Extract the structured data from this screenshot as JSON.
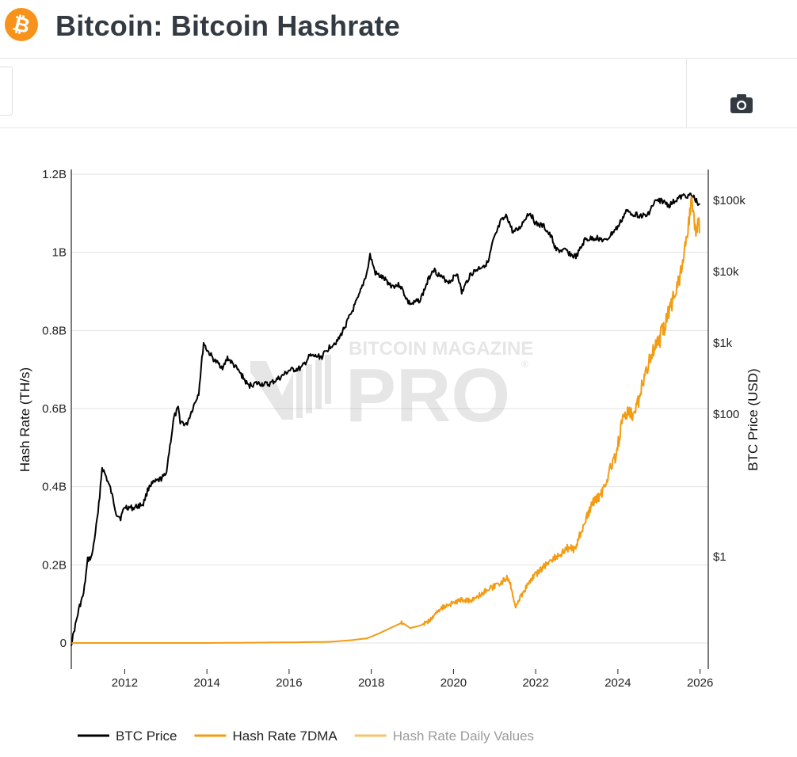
{
  "header": {
    "title": "Bitcoin: Bitcoin Hashrate",
    "logo_icon": "bitcoin-logo-icon",
    "logo_glyph": "₿",
    "brand_color": "#f7931a"
  },
  "toolbar": {
    "camera_icon": "camera-icon"
  },
  "watermark": {
    "line1": "BITCOIN MAGAZINE",
    "line2": "PRO",
    "mark": "®"
  },
  "chart_data": {
    "type": "line",
    "x_ticks": [
      "2012",
      "2014",
      "2016",
      "2018",
      "2020",
      "2022",
      "2024",
      "2026"
    ],
    "y_left": {
      "label": "Hash Rate (TH/s)",
      "ticks": [
        "0",
        "0.2B",
        "0.4B",
        "0.6B",
        "0.8B",
        "1B",
        "1.2B"
      ],
      "range": [
        0,
        1200000000
      ]
    },
    "y_right": {
      "label": "BTC Price (USD)",
      "scale": "log",
      "ticks": [
        "$1",
        "$100",
        "$1k",
        "$10k",
        "$100k"
      ]
    },
    "grid": true,
    "legend_position": "bottom",
    "series": [
      {
        "name": "BTC Price",
        "axis": "right",
        "color": "#000000",
        "points": [
          [
            2010.7,
            0.06
          ],
          [
            2010.9,
            0.2
          ],
          [
            2011.0,
            0.3
          ],
          [
            2011.1,
            0.9
          ],
          [
            2011.2,
            1.0
          ],
          [
            2011.35,
            4
          ],
          [
            2011.45,
            18
          ],
          [
            2011.55,
            13
          ],
          [
            2011.65,
            9
          ],
          [
            2011.8,
            4
          ],
          [
            2011.9,
            3.5
          ],
          [
            2012.0,
            5
          ],
          [
            2012.2,
            4.8
          ],
          [
            2012.45,
            5.5
          ],
          [
            2012.6,
            10
          ],
          [
            2012.85,
            12
          ],
          [
            2013.0,
            14
          ],
          [
            2013.2,
            90
          ],
          [
            2013.3,
            120
          ],
          [
            2013.35,
            80
          ],
          [
            2013.5,
            70
          ],
          [
            2013.6,
            100
          ],
          [
            2013.8,
            200
          ],
          [
            2013.92,
            1000
          ],
          [
            2014.0,
            800
          ],
          [
            2014.2,
            550
          ],
          [
            2014.4,
            450
          ],
          [
            2014.5,
            620
          ],
          [
            2014.7,
            450
          ],
          [
            2014.85,
            350
          ],
          [
            2015.0,
            250
          ],
          [
            2015.2,
            270
          ],
          [
            2015.5,
            260
          ],
          [
            2015.8,
            330
          ],
          [
            2016.0,
            410
          ],
          [
            2016.3,
            440
          ],
          [
            2016.5,
            650
          ],
          [
            2016.8,
            640
          ],
          [
            2017.0,
            900
          ],
          [
            2017.2,
            1100
          ],
          [
            2017.5,
            2500
          ],
          [
            2017.7,
            4500
          ],
          [
            2017.9,
            10000
          ],
          [
            2017.97,
            17000
          ],
          [
            2018.1,
            9500
          ],
          [
            2018.3,
            8000
          ],
          [
            2018.5,
            6300
          ],
          [
            2018.7,
            6500
          ],
          [
            2018.9,
            3700
          ],
          [
            2019.0,
            3500
          ],
          [
            2019.2,
            4100
          ],
          [
            2019.4,
            8000
          ],
          [
            2019.5,
            11000
          ],
          [
            2019.7,
            8300
          ],
          [
            2019.9,
            7200
          ],
          [
            2020.1,
            9500
          ],
          [
            2020.2,
            5000
          ],
          [
            2020.4,
            9000
          ],
          [
            2020.6,
            11000
          ],
          [
            2020.85,
            13500
          ],
          [
            2020.95,
            25000
          ],
          [
            2021.15,
            50000
          ],
          [
            2021.3,
            60000
          ],
          [
            2021.45,
            35000
          ],
          [
            2021.6,
            40000
          ],
          [
            2021.8,
            63000
          ],
          [
            2021.87,
            67000
          ],
          [
            2022.0,
            47000
          ],
          [
            2022.2,
            43000
          ],
          [
            2022.4,
            29000
          ],
          [
            2022.5,
            20000
          ],
          [
            2022.75,
            19500
          ],
          [
            2022.9,
            16500
          ],
          [
            2023.0,
            16500
          ],
          [
            2023.2,
            28000
          ],
          [
            2023.5,
            30000
          ],
          [
            2023.7,
            26500
          ],
          [
            2023.9,
            37000
          ],
          [
            2024.0,
            42000
          ],
          [
            2024.2,
            70000
          ],
          [
            2024.5,
            62000
          ],
          [
            2024.7,
            60000
          ],
          [
            2024.9,
            95000
          ],
          [
            2025.05,
            100000
          ],
          [
            2025.25,
            85000
          ],
          [
            2025.45,
            105000
          ],
          [
            2025.6,
            115000
          ],
          [
            2025.75,
            118000
          ],
          [
            2025.85,
            110000
          ],
          [
            2025.95,
            90000
          ],
          [
            2026.0,
            89000
          ]
        ]
      },
      {
        "name": "Hash Rate 7DMA",
        "axis": "left",
        "color": "#f39c12",
        "points": [
          [
            2010.7,
            0
          ],
          [
            2014.0,
            0
          ],
          [
            2016.0,
            1500000.0
          ],
          [
            2017.0,
            3000000.0
          ],
          [
            2017.5,
            7000000.0
          ],
          [
            2017.9,
            12000000.0
          ],
          [
            2018.2,
            25000000.0
          ],
          [
            2018.5,
            40000000.0
          ],
          [
            2018.75,
            52000000.0
          ],
          [
            2018.95,
            38000000.0
          ],
          [
            2019.2,
            45000000.0
          ],
          [
            2019.45,
            60000000.0
          ],
          [
            2019.7,
            90000000.0
          ],
          [
            2019.95,
            100000000.0
          ],
          [
            2020.2,
            110000000.0
          ],
          [
            2020.4,
            108000000.0
          ],
          [
            2020.6,
            120000000.0
          ],
          [
            2020.8,
            135000000.0
          ],
          [
            2021.0,
            145000000.0
          ],
          [
            2021.3,
            165000000.0
          ],
          [
            2021.4,
            145000000.0
          ],
          [
            2021.5,
            92000000.0
          ],
          [
            2021.7,
            130000000.0
          ],
          [
            2021.9,
            165000000.0
          ],
          [
            2022.2,
            195000000.0
          ],
          [
            2022.4,
            215000000.0
          ],
          [
            2022.6,
            225000000.0
          ],
          [
            2022.8,
            245000000.0
          ],
          [
            2022.95,
            240000000.0
          ],
          [
            2023.2,
            310000000.0
          ],
          [
            2023.4,
            360000000.0
          ],
          [
            2023.6,
            380000000.0
          ],
          [
            2023.8,
            440000000.0
          ],
          [
            2023.95,
            480000000.0
          ],
          [
            2024.1,
            560000000.0
          ],
          [
            2024.25,
            600000000.0
          ],
          [
            2024.4,
            580000000.0
          ],
          [
            2024.55,
            640000000.0
          ],
          [
            2024.75,
            720000000.0
          ],
          [
            2024.95,
            760000000.0
          ],
          [
            2025.1,
            800000000.0
          ],
          [
            2025.3,
            870000000.0
          ],
          [
            2025.5,
            940000000.0
          ],
          [
            2025.65,
            1020000000.0
          ],
          [
            2025.75,
            1100000000.0
          ],
          [
            2025.82,
            1130000000.0
          ],
          [
            2025.9,
            1050000000.0
          ],
          [
            2025.96,
            1080000000.0
          ],
          [
            2026.0,
            1050000000.0
          ]
        ]
      },
      {
        "name": "Hash Rate Daily Values",
        "axis": "left",
        "color": "#f5c36b",
        "points": []
      }
    ]
  }
}
